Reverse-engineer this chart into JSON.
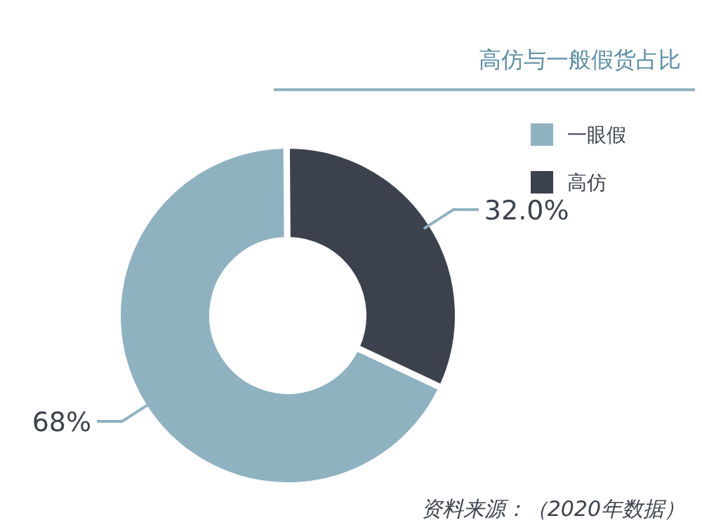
{
  "chart_data": {
    "type": "donut",
    "title": "高仿与一般假货占比",
    "categories": [
      "一眼假",
      "高仿"
    ],
    "values": [
      68,
      32.0
    ],
    "colors": [
      "#8fb2c1",
      "#3c424d"
    ],
    "value_labels": [
      "68%",
      "32.0%"
    ],
    "legend": "top right",
    "annotations": [
      "资料来源：（2020年数据）"
    ]
  }
}
